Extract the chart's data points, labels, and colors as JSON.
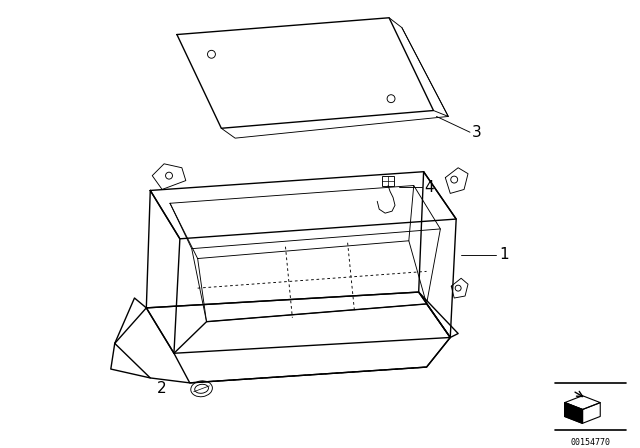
{
  "background_color": "#ffffff",
  "line_color": "#000000",
  "label_color": "#000000",
  "watermark": "00154770",
  "fig_width": 6.4,
  "fig_height": 4.48,
  "dpi": 100
}
